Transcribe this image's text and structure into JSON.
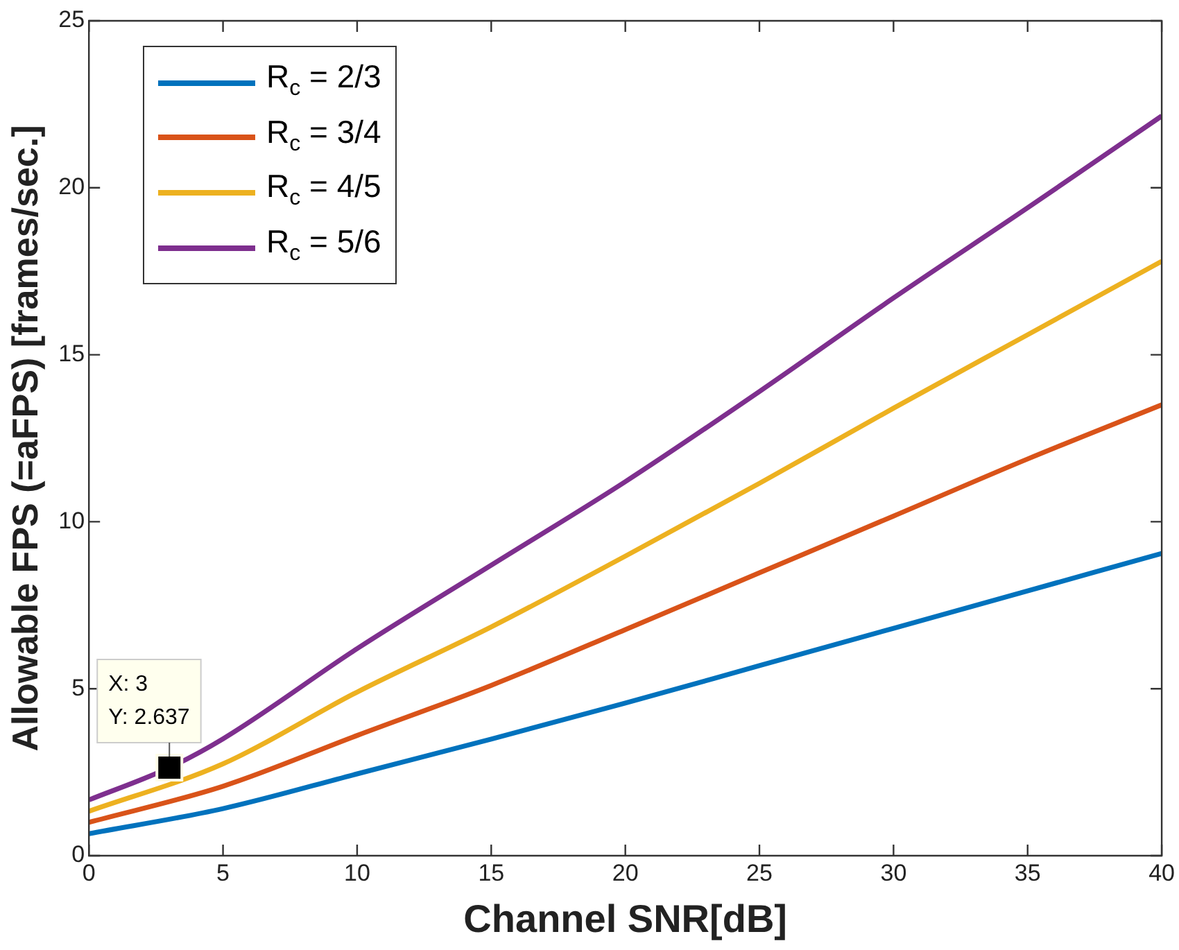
{
  "chart_data": {
    "type": "line",
    "xlabel": "Channel SNR[dB]",
    "ylabel": "Allowable FPS (=aFPS) [frames/sec.]",
    "x": [
      0,
      5,
      10,
      15,
      20,
      25,
      30,
      35,
      40
    ],
    "series": [
      {
        "name": "R$_{c}$ = 2/3",
        "color": "#0072bd",
        "values": [
          0.66,
          1.41,
          2.45,
          3.49,
          4.57,
          5.69,
          6.81,
          7.93,
          9.05
        ]
      },
      {
        "name": "R$_{c}$ = 3/4",
        "color": "#d95319",
        "values": [
          1.0,
          2.08,
          3.6,
          5.1,
          6.77,
          8.47,
          10.17,
          11.88,
          13.5
        ]
      },
      {
        "name": "R$_{c}$ = 4/5",
        "color": "#edb120",
        "values": [
          1.33,
          2.75,
          4.9,
          6.85,
          8.97,
          11.15,
          13.4,
          15.6,
          17.8
        ]
      },
      {
        "name": "R$_{c}$ = 5/6",
        "color": "#7e2f8e",
        "x": [
          0,
          3,
          5,
          10,
          15,
          20,
          25,
          30,
          35,
          40
        ],
        "values": [
          1.67,
          2.637,
          3.5,
          6.2,
          8.7,
          11.2,
          13.9,
          16.7,
          19.4,
          22.15
        ]
      }
    ],
    "xlim": [
      0,
      40
    ],
    "xticks": [
      0,
      5,
      10,
      15,
      20,
      25,
      30,
      35,
      40
    ],
    "ylim": [
      0,
      25
    ],
    "yticks": [
      0,
      5,
      10,
      15,
      20,
      25
    ],
    "grid": false,
    "legend": "top left",
    "marker": "none",
    "line_style": "solid",
    "annotations": [
      {
        "text": "X: 3\nY: 2.637",
        "x": 3,
        "y": 2.637
      }
    ]
  }
}
